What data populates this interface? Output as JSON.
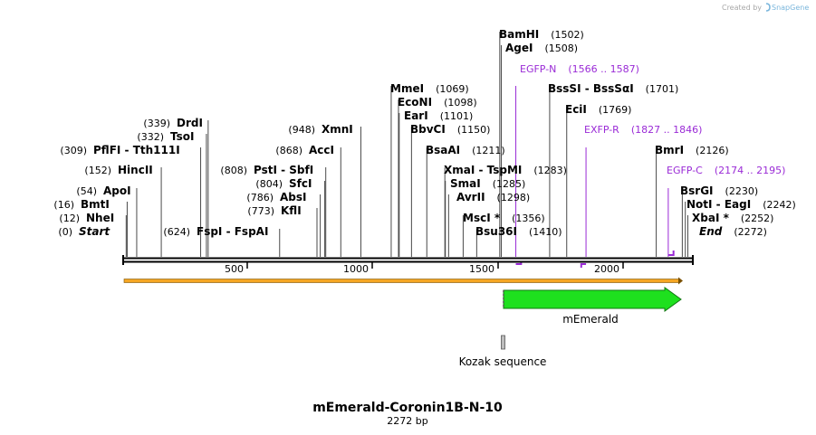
{
  "credit": {
    "text": "Created by",
    "brand": "SnapGene"
  },
  "title": "mEmerald-Coronin1B-N-10",
  "length_label": "2272 bp",
  "sequence_length": 2272,
  "colors": {
    "primer": "#9a2bd6",
    "feature": "#1ee01e",
    "orf": "#f5a623",
    "kozak": "#bdbdbd"
  },
  "ruler": {
    "ticks": [
      "500",
      "1000",
      "1500",
      "2000"
    ]
  },
  "sites": [
    {
      "name": "Start",
      "pos": "(0)",
      "italic": true,
      "bp": 0
    },
    {
      "name": "NheI",
      "pos": "(12)",
      "bp": 12
    },
    {
      "name": "BmtI",
      "pos": "(16)",
      "bp": 16
    },
    {
      "name": "ApoI",
      "pos": "(54)",
      "bp": 54
    },
    {
      "name": "HincII",
      "pos": "(152)",
      "bp": 152
    },
    {
      "name": "PflFI",
      "name2": "Tth111I",
      "pos": "(309)",
      "bp": 309
    },
    {
      "name": "TsoI",
      "pos": "(332)",
      "bp": 332
    },
    {
      "name": "DrdI",
      "pos": "(339)",
      "bp": 339
    },
    {
      "name": "FspI",
      "name2": "FspAI",
      "pos": "(624)",
      "bp": 624
    },
    {
      "name": "KflI",
      "pos": "(773)",
      "bp": 773
    },
    {
      "name": "AbsI",
      "pos": "(786)",
      "bp": 786
    },
    {
      "name": "SfcI",
      "pos": "(804)",
      "bp": 804
    },
    {
      "name": "PstI",
      "name2": "SbfI",
      "pos": "(808)",
      "bp": 808
    },
    {
      "name": "AccI",
      "pos": "(868)",
      "bp": 868
    },
    {
      "name": "XmnI",
      "pos": "(948)",
      "bp": 948
    },
    {
      "name": "MmeI",
      "pos": "(1069)",
      "bp": 1069
    },
    {
      "name": "EcoNI",
      "pos": "(1098)",
      "bp": 1098
    },
    {
      "name": "EarI",
      "pos": "(1101)",
      "bp": 1101
    },
    {
      "name": "BbvCI",
      "pos": "(1150)",
      "bp": 1150
    },
    {
      "name": "BsaAI",
      "pos": "(1211)",
      "bp": 1211
    },
    {
      "name": "XmaI",
      "name2": "TspMI",
      "pos": "(1283)",
      "bp": 1283
    },
    {
      "name": "SmaI",
      "pos": "(1285)",
      "bp": 1285
    },
    {
      "name": "AvrII",
      "pos": "(1298)",
      "bp": 1298
    },
    {
      "name": "MscI *",
      "pos": "(1356)",
      "bp": 1356
    },
    {
      "name": "Bsu36I",
      "pos": "(1410)",
      "bp": 1410
    },
    {
      "name": "BamHI",
      "pos": "(1502)",
      "bp": 1502
    },
    {
      "name": "AgeI",
      "pos": "(1508)",
      "bp": 1508
    },
    {
      "name": "BssSI",
      "name2": "BssSαI",
      "pos": "(1701)",
      "bp": 1701
    },
    {
      "name": "EciI",
      "pos": "(1769)",
      "bp": 1769
    },
    {
      "name": "BmrI",
      "pos": "(2126)",
      "bp": 2126
    },
    {
      "name": "BsrGI",
      "pos": "(2230)",
      "bp": 2230
    },
    {
      "name": "NotI",
      "name2": "EagI",
      "pos": "(2242)",
      "bp": 2242
    },
    {
      "name": "XbaI *",
      "pos": "(2252)",
      "bp": 2252
    },
    {
      "name": "End",
      "pos": "(2272)",
      "italic": true,
      "bp": 2272
    }
  ],
  "primers": [
    {
      "name": "EGFP-N",
      "range": "(1566 .. 1587)",
      "start": 1566,
      "end": 1587
    },
    {
      "name": "EXFP-R",
      "range": "(1827 .. 1846)",
      "start": 1827,
      "end": 1846
    },
    {
      "name": "EGFP-C",
      "range": "(2174 .. 2195)",
      "start": 2174,
      "end": 2195
    }
  ],
  "features": [
    {
      "name": "mEmerald",
      "start": 1514,
      "end": 2233,
      "direction": "forward"
    },
    {
      "name": "Kozak sequence",
      "start": 1505,
      "end": 1514
    }
  ],
  "orf": {
    "start": 0,
    "end": 2233,
    "direction": "forward"
  }
}
